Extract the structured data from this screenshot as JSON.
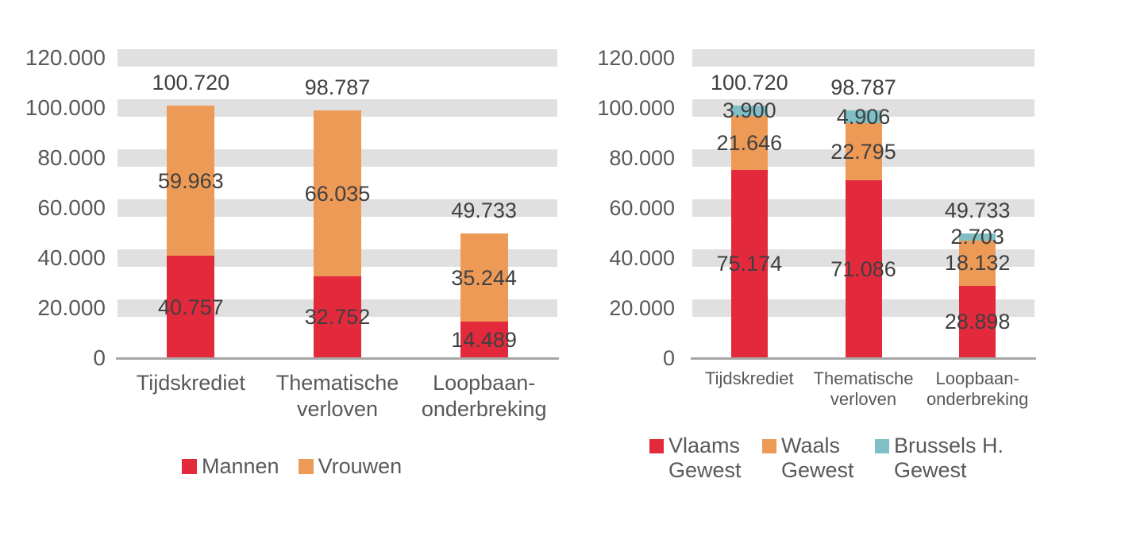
{
  "figure": {
    "background": "#FFFFFF",
    "description": "Two stacked column charts of Belgian career-break statistics"
  },
  "style": {
    "band_color": "#E0E0E0",
    "axis_line_color": "#A6A6A6",
    "axis_text_color": "#595959",
    "data_label_color": "#404040",
    "red": "#E3293C",
    "orange": "#EE9A57",
    "teal": "#7FBFC5"
  },
  "chart_data": [
    {
      "id": "left",
      "type": "bar",
      "subtype": "stacked-column",
      "title": "",
      "categories": [
        "Tijdskrediet",
        "Thematische\nverloven",
        "Loopbaan-\nonderbreking"
      ],
      "series": [
        {
          "name": "Mannen",
          "color": "#E3293C",
          "values": [
            40757,
            32752,
            14489
          ]
        },
        {
          "name": "Vrouwen",
          "color": "#EE9A57",
          "values": [
            59963,
            66035,
            35244
          ]
        }
      ],
      "totals": [
        100720,
        98787,
        49733
      ],
      "total_labels": [
        "100.720",
        "98.787",
        "49.733"
      ],
      "segment_labels": [
        [
          "40.757",
          "32.752",
          "14.489"
        ],
        [
          "59.963",
          "66.035",
          "35.244"
        ]
      ],
      "ylim": [
        0,
        120000
      ],
      "ystep": 20000,
      "ytick_labels": [
        "0",
        "20.000",
        "40.000",
        "60.000",
        "80.000",
        "100.000",
        "120.000"
      ],
      "grid": "horizontal-gray-bands",
      "legend_position": "bottom",
      "legend_labels": [
        "Mannen",
        "Vrouwen"
      ],
      "number_format": "thousands-dot"
    },
    {
      "id": "right",
      "type": "bar",
      "subtype": "stacked-column",
      "title": "",
      "categories": [
        "Tijdskrediet",
        "Thematische\nverloven",
        "Loopbaan-\nonderbreking"
      ],
      "series": [
        {
          "name": "Vlaams Gewest",
          "color": "#E3293C",
          "values": [
            75174,
            71086,
            28898
          ]
        },
        {
          "name": "Waals Gewest",
          "color": "#EE9A57",
          "values": [
            21646,
            22795,
            18132
          ]
        },
        {
          "name": "Brussels H. Gewest",
          "color": "#7FBFC5",
          "values": [
            3900,
            4906,
            2703
          ]
        }
      ],
      "totals": [
        100720,
        98787,
        49733
      ],
      "total_labels": [
        "100.720",
        "98.787",
        "49.733"
      ],
      "segment_labels": [
        [
          "75.174",
          "71.086",
          "28.898"
        ],
        [
          "21.646",
          "22.795",
          "18.132"
        ],
        [
          "3.900",
          "4.906",
          "2.703"
        ]
      ],
      "ylim": [
        0,
        120000
      ],
      "ystep": 20000,
      "ytick_labels": [
        "0",
        "20.000",
        "40.000",
        "60.000",
        "80.000",
        "100.000",
        "120.000"
      ],
      "grid": "horizontal-gray-bands",
      "legend_position": "bottom",
      "legend_labels": [
        "Vlaams Gewest",
        "Waals Gewest",
        "Brussels H. Gewest"
      ],
      "number_format": "thousands-dot"
    }
  ]
}
